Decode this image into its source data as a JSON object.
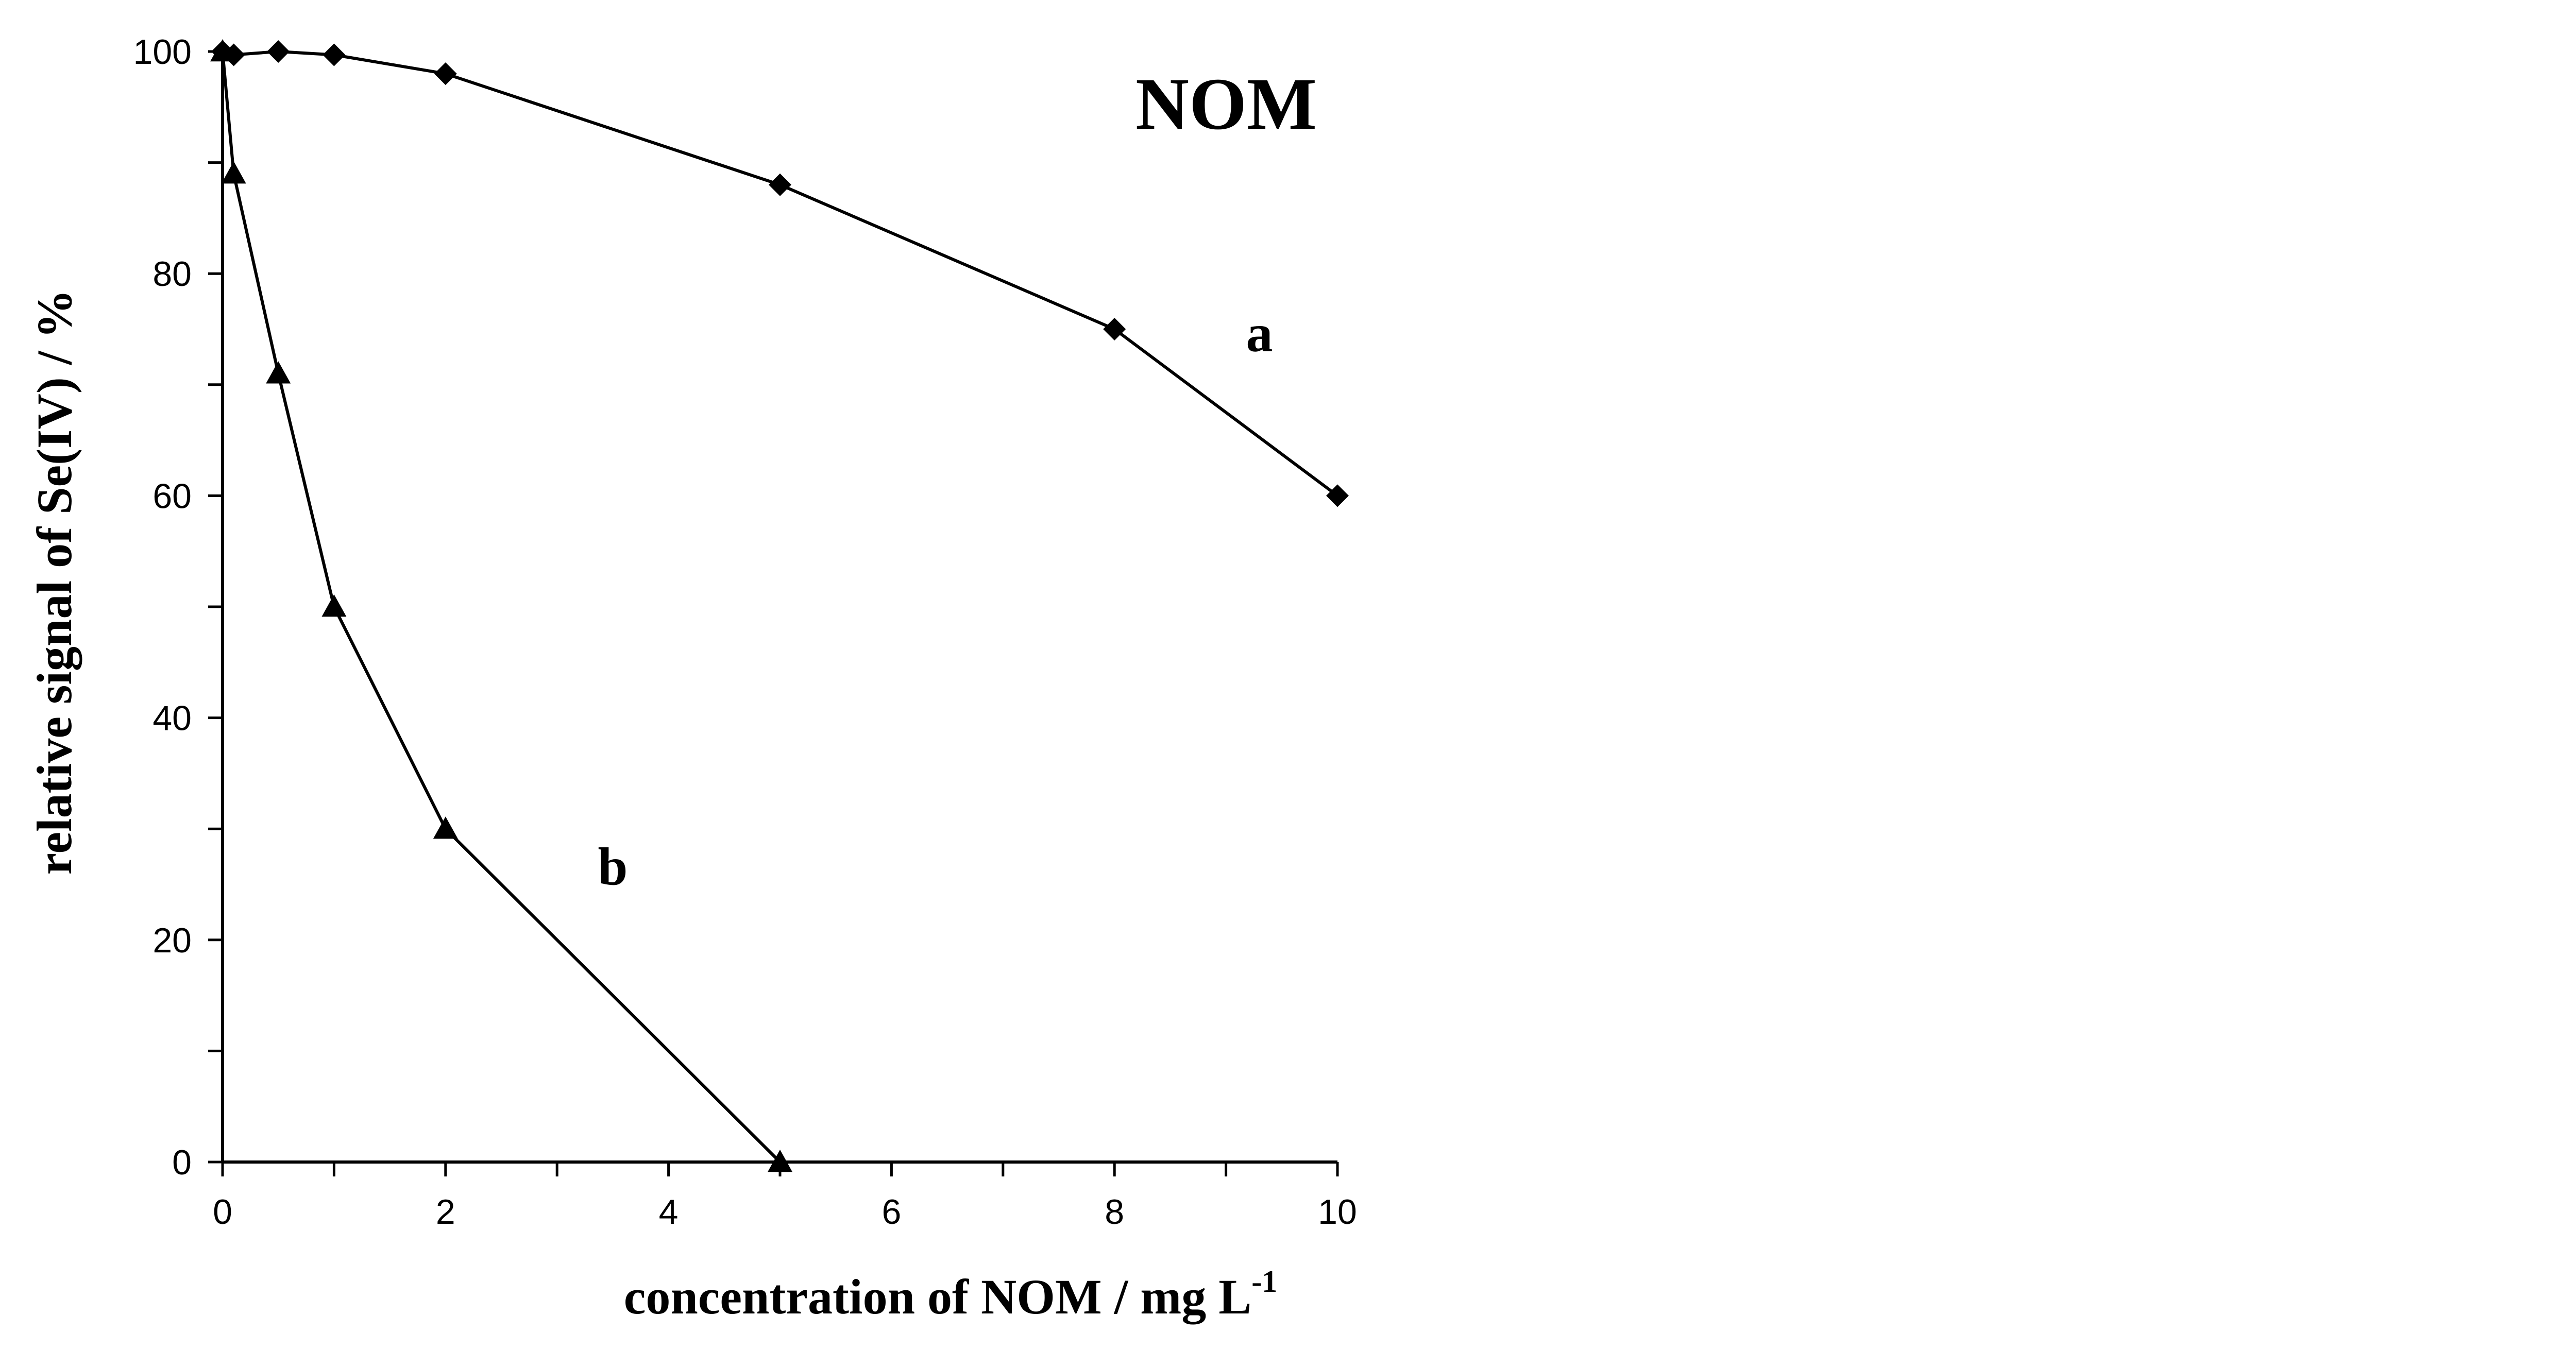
{
  "chart_data": {
    "type": "line",
    "title": "NOM",
    "xlabel": "concentration of NOM / mg L",
    "xlabel_sup": "-1",
    "ylabel": "relative signal of Se(IV) / %",
    "xlim": [
      0,
      10
    ],
    "ylim": [
      0,
      100
    ],
    "xticks": [
      0,
      2,
      4,
      6,
      8,
      10
    ],
    "xticks_minor": [
      1,
      3,
      5,
      7,
      9
    ],
    "yticks": [
      0,
      20,
      40,
      60,
      80,
      100
    ],
    "yticks_minor": [
      10,
      30,
      50,
      70,
      90
    ],
    "grid": false,
    "series": [
      {
        "name": "a",
        "marker": "diamond",
        "x": [
          0,
          0.1,
          0.5,
          1,
          2,
          5,
          8,
          10
        ],
        "values": [
          100,
          99.7,
          100,
          99.7,
          98,
          88,
          75,
          60
        ],
        "label_at": [
          9.3,
          73
        ]
      },
      {
        "name": "b",
        "marker": "triangle",
        "x": [
          0,
          0.1,
          0.5,
          1,
          2,
          5
        ],
        "values": [
          100,
          89,
          71,
          50,
          30,
          0
        ],
        "label_at": [
          3.5,
          25
        ]
      }
    ]
  }
}
